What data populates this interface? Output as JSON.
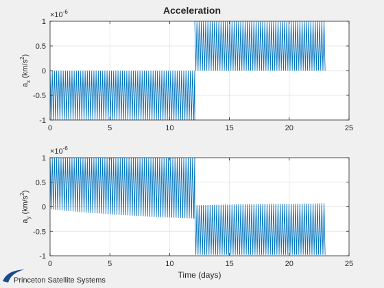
{
  "figure": {
    "title": "Acceleration",
    "footer_logo": "Princeton Satellite Systems"
  },
  "colors": {
    "series": "#0072BD",
    "axes": "#262626",
    "grid": "#dfdfdf",
    "background": "#f0f0f0",
    "plot_bg": "#ffffff",
    "logo": "#1a4a8a"
  },
  "chart_data": [
    {
      "type": "line",
      "title": "Acceleration",
      "ylabel": "a_x (km/s^2)",
      "ylabel_main": "a",
      "ylabel_sub": "x",
      "ylabel_unit": "(km/s",
      "ylabel_exp": "2",
      "ylabel_close": ")",
      "xlabel": "",
      "xlim": [
        0,
        25
      ],
      "ylim": [
        -1,
        1
      ],
      "y_exponent": "-6",
      "xticks": [
        "0",
        "5",
        "10",
        "15",
        "20",
        "25"
      ],
      "yticks": [
        "-1",
        "-0.5",
        "0",
        "0.5",
        "1"
      ],
      "grid": true,
      "series": [
        {
          "segments": [
            {
              "x_range": [
                0,
                12.1
              ],
              "upper": [
                [
                  0,
                  0
                ],
                [
                  12.1,
                  0
                ]
              ],
              "lower": [
                [
                  0,
                  -1
                ],
                [
                  12.1,
                  -1
                ]
              ]
            },
            {
              "x_range": [
                12.1,
                23.0
              ],
              "upper": [
                [
                  12.1,
                  1
                ],
                [
                  23.0,
                  1
                ]
              ],
              "lower": [
                [
                  12.1,
                  0
                ],
                [
                  23.0,
                  0
                ]
              ]
            }
          ]
        }
      ]
    },
    {
      "type": "line",
      "title": "",
      "ylabel": "a_y (km/s^2)",
      "ylabel_main": "a",
      "ylabel_sub": "y",
      "ylabel_unit": "(km/s",
      "ylabel_exp": "2",
      "ylabel_close": ")",
      "xlabel": "Time (days)",
      "xlim": [
        0,
        25
      ],
      "ylim": [
        -1,
        1
      ],
      "y_exponent": "-6",
      "xticks": [
        "0",
        "5",
        "10",
        "15",
        "20",
        "25"
      ],
      "yticks": [
        "-1",
        "-0.5",
        "0",
        "0.5",
        "1"
      ],
      "grid": true,
      "series": [
        {
          "segments": [
            {
              "x_range": [
                0,
                12.1
              ],
              "upper": [
                [
                  0,
                  1
                ],
                [
                  12.1,
                  1
                ]
              ],
              "lower": [
                [
                  0,
                  -0.05
                ],
                [
                  3,
                  -0.12
                ],
                [
                  6,
                  -0.17
                ],
                [
                  9,
                  -0.21
                ],
                [
                  12.1,
                  -0.24
                ]
              ]
            },
            {
              "x_range": [
                12.1,
                23.0
              ],
              "upper": [
                [
                  12.1,
                  0.03
                ],
                [
                  16,
                  0.05
                ],
                [
                  20,
                  0.06
                ],
                [
                  23.0,
                  0.07
                ]
              ],
              "lower": [
                [
                  12.1,
                  -0.98
                ],
                [
                  23.0,
                  -0.98
                ]
              ]
            }
          ]
        }
      ]
    }
  ]
}
